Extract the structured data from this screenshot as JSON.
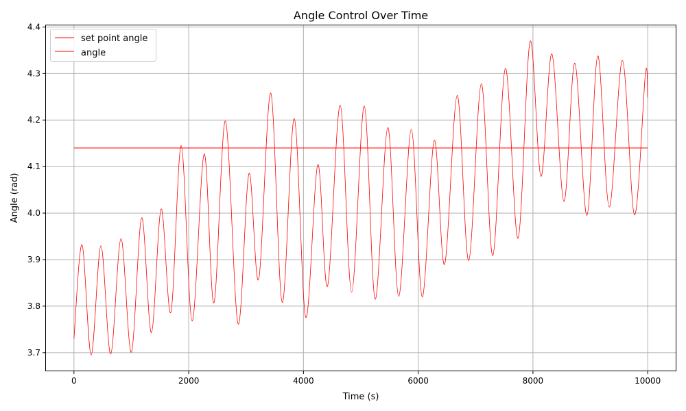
{
  "chart_data": {
    "type": "line",
    "title": "Angle Control Over Time",
    "xlabel": "Time (s)",
    "ylabel": "Angle (rad)",
    "xlim": [
      -500,
      10500
    ],
    "ylim": [
      3.66,
      4.405
    ],
    "xticks": [
      0,
      2000,
      4000,
      6000,
      8000,
      10000
    ],
    "yticks": [
      3.7,
      3.8,
      3.9,
      4.0,
      4.1,
      4.2,
      4.3,
      4.4
    ],
    "ytick_decimals": 1,
    "grid": true,
    "legend_position": "top-left",
    "series": [
      {
        "name": "set point angle",
        "color": "#ff0000",
        "points": [
          [
            0,
            4.14
          ],
          [
            10000,
            4.14
          ]
        ]
      },
      {
        "name": "angle",
        "color": "#ff0000",
        "points": [
          [
            0,
            3.73
          ],
          [
            140,
            3.932
          ],
          [
            300,
            3.695
          ],
          [
            470,
            3.93
          ],
          [
            640,
            3.697
          ],
          [
            820,
            3.945
          ],
          [
            1000,
            3.701
          ],
          [
            1180,
            3.99
          ],
          [
            1350,
            3.743
          ],
          [
            1520,
            4.009
          ],
          [
            1690,
            3.787
          ],
          [
            1870,
            4.145
          ],
          [
            2060,
            3.768
          ],
          [
            2270,
            4.127
          ],
          [
            2440,
            3.807
          ],
          [
            2640,
            4.198
          ],
          [
            2860,
            3.762
          ],
          [
            3050,
            4.085
          ],
          [
            3220,
            3.858
          ],
          [
            3430,
            4.258
          ],
          [
            3630,
            3.808
          ],
          [
            3840,
            4.203
          ],
          [
            4040,
            3.776
          ],
          [
            4250,
            4.104
          ],
          [
            4420,
            3.843
          ],
          [
            4640,
            4.232
          ],
          [
            4840,
            3.83
          ],
          [
            5060,
            4.23
          ],
          [
            5250,
            3.815
          ],
          [
            5470,
            4.184
          ],
          [
            5660,
            3.821
          ],
          [
            5880,
            4.18
          ],
          [
            6070,
            3.82
          ],
          [
            6280,
            4.156
          ],
          [
            6460,
            3.89
          ],
          [
            6680,
            4.253
          ],
          [
            6880,
            3.898
          ],
          [
            7100,
            4.278
          ],
          [
            7300,
            3.909
          ],
          [
            7520,
            4.311
          ],
          [
            7740,
            3.946
          ],
          [
            7950,
            4.369
          ],
          [
            8140,
            4.079
          ],
          [
            8330,
            4.342
          ],
          [
            8540,
            4.025
          ],
          [
            8730,
            4.322
          ],
          [
            8940,
            3.995
          ],
          [
            9130,
            4.338
          ],
          [
            9330,
            4.013
          ],
          [
            9560,
            4.328
          ],
          [
            9770,
            3.996
          ],
          [
            9960,
            4.3
          ],
          [
            10000,
            4.248
          ]
        ]
      }
    ]
  }
}
